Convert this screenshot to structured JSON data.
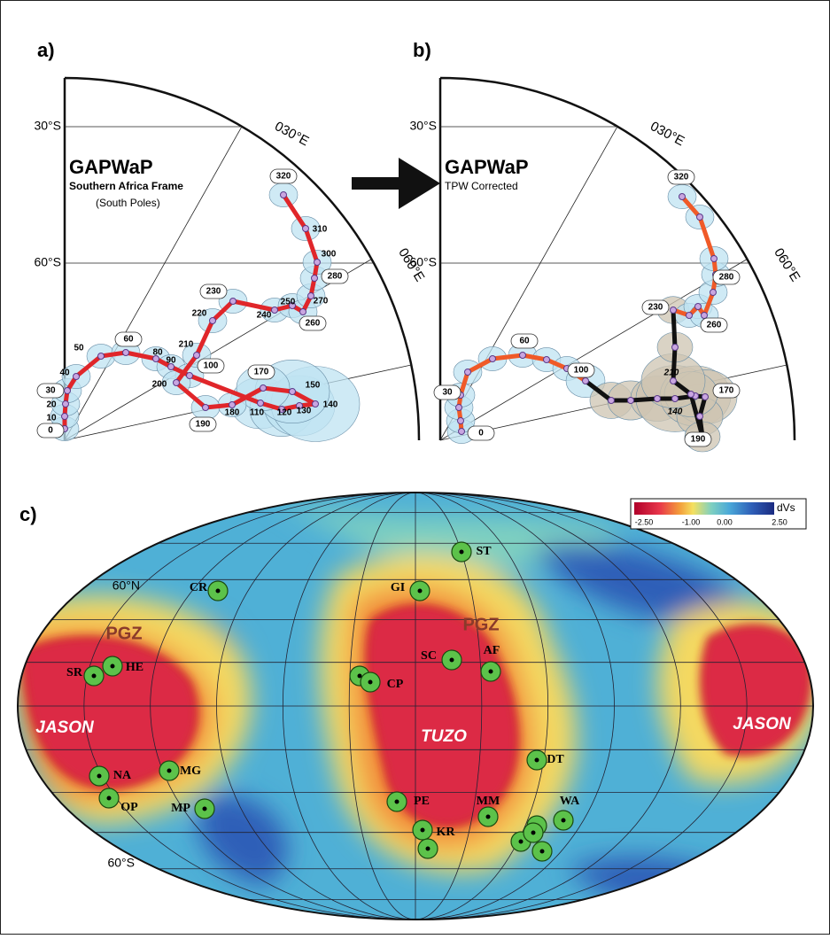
{
  "panels": [
    {
      "label": "a)",
      "title": "GAPWaP",
      "frame": "Southern Africa Frame",
      "note": "(South Poles)",
      "lat_labels": [
        "30°S",
        "60°S"
      ],
      "lon_labels": [
        "030°E",
        "060°E"
      ],
      "age_labels": [
        0,
        10,
        20,
        30,
        40,
        50,
        60,
        80,
        90,
        100,
        110,
        120,
        130,
        140,
        150,
        170,
        180,
        190,
        200,
        210,
        220,
        230,
        240,
        250,
        260,
        270,
        280,
        300,
        310,
        320
      ]
    },
    {
      "label": "b)",
      "title": "GAPWaP",
      "frame": "TPW Corrected",
      "lat_labels": [
        "30°S",
        "60°S"
      ],
      "lon_labels": [
        "030°E",
        "060°E"
      ],
      "age_labels": [
        0,
        30,
        60,
        100,
        140,
        170,
        190,
        210,
        230,
        260,
        280,
        320
      ]
    }
  ],
  "map": {
    "label": "c)",
    "lat_labels": [
      "60°N",
      "60°S"
    ],
    "colorbar": {
      "title": "dVs",
      "ticks": [
        "-2.50",
        "-1.00",
        "0.00",
        "2.50"
      ]
    },
    "provinces": [
      "JASON",
      "TUZO",
      "JASON"
    ],
    "zones": [
      "PGZ",
      "PGZ"
    ],
    "sites": [
      "ST",
      "CR",
      "GI",
      "SR",
      "HE",
      "CP",
      "SC",
      "AF",
      "DT",
      "NA",
      "MG",
      "OP",
      "MP",
      "PE",
      "MM",
      "WA",
      "KR"
    ]
  }
}
